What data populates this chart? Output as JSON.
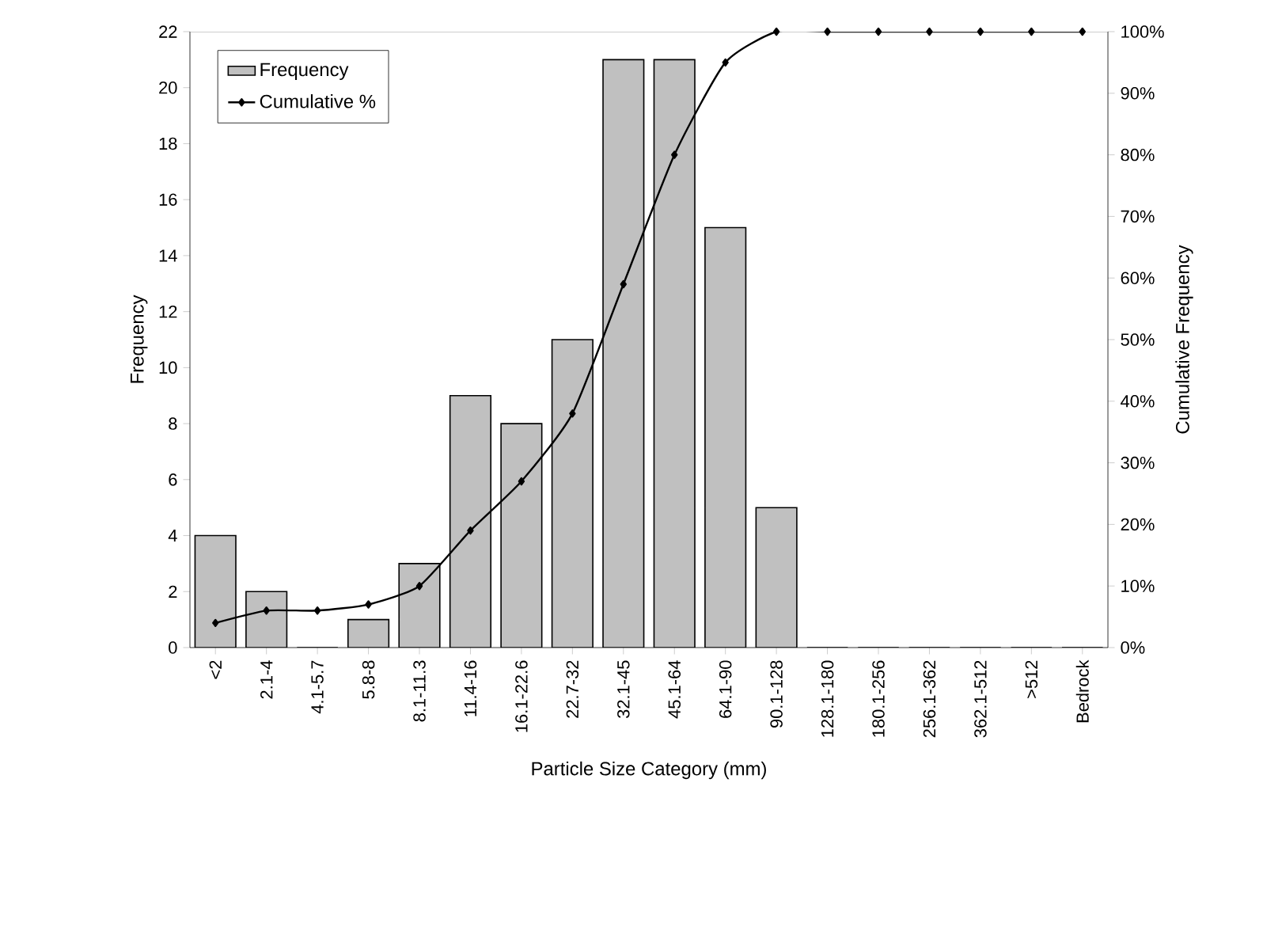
{
  "chart_data": {
    "type": "bar",
    "xlabel": "Particle Size Category (mm)",
    "ylabel": "Frequency",
    "y2label": "Cumulative Frequency",
    "categories": [
      "<2",
      "2.1-4",
      "4.1-5.7",
      "5.8-8",
      "8.1-11.3",
      "11.4-16",
      "16.1-22.6",
      "22.7-32",
      "32.1-45",
      "45.1-64",
      "64.1-90",
      "90.1-128",
      "128.1-180",
      "180.1-256",
      "256.1-362",
      "362.1-512",
      ">512",
      "Bedrock"
    ],
    "series": [
      {
        "name": "Frequency",
        "color": "#c0c0c0",
        "values": [
          4,
          2,
          0,
          1,
          3,
          9,
          8,
          11,
          21,
          21,
          15,
          5,
          0,
          0,
          0,
          0,
          0,
          0
        ]
      },
      {
        "name": "Cumulative %",
        "type": "line",
        "axis": "y2",
        "color": "#000000",
        "marker": "diamond",
        "line_style": "solid",
        "values": [
          4,
          6,
          6,
          7,
          10,
          19,
          27,
          38,
          59,
          80,
          95,
          100,
          100,
          100,
          100,
          100,
          100,
          100
        ]
      }
    ],
    "ylim": [
      0,
      22
    ],
    "yticks": [
      0,
      2,
      4,
      6,
      8,
      10,
      12,
      14,
      16,
      18,
      20,
      22
    ],
    "y2lim": [
      0,
      100
    ],
    "y2ticks": [
      {
        "value": 0,
        "label": "0%"
      },
      {
        "value": 10,
        "label": "10%"
      },
      {
        "value": 20,
        "label": "20%"
      },
      {
        "value": 30,
        "label": "30%"
      },
      {
        "value": 40,
        "label": "40%"
      },
      {
        "value": 50,
        "label": "50%"
      },
      {
        "value": 60,
        "label": "60%"
      },
      {
        "value": 70,
        "label": "70%"
      },
      {
        "value": 80,
        "label": "80%"
      },
      {
        "value": 90,
        "label": "90%"
      },
      {
        "value": 100,
        "label": "100%"
      }
    ],
    "grid": false,
    "legend": "top left"
  }
}
